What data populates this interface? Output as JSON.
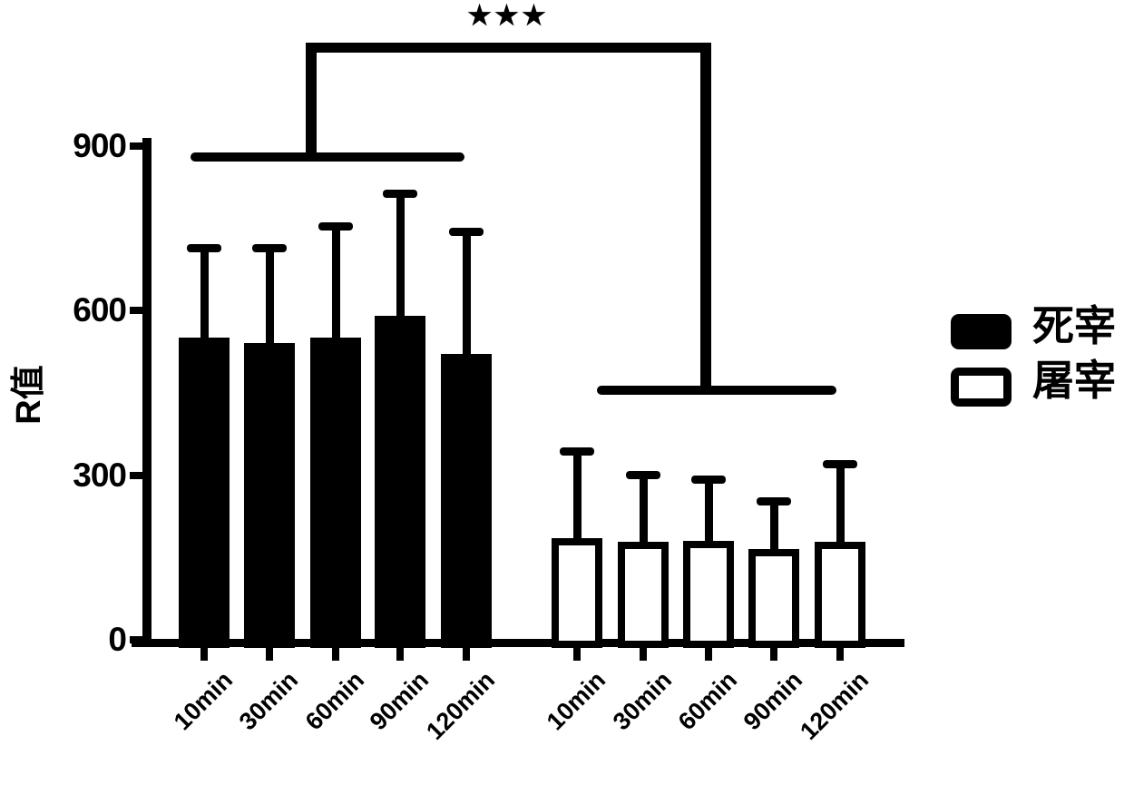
{
  "chart_data": {
    "type": "bar",
    "title": "",
    "ylabel": "R值",
    "xlabel": "",
    "ylim": [
      0,
      900
    ],
    "yticks": [
      0,
      300,
      600,
      900
    ],
    "grid": false,
    "legend_position": "right",
    "categories": [
      "10min",
      "30min",
      "60min",
      "90min",
      "120min"
    ],
    "series": [
      {
        "name": "死宰",
        "style": "filled-black",
        "values": [
          550,
          540,
          550,
          590,
          520
        ],
        "errors": [
          170,
          180,
          210,
          230,
          230
        ]
      },
      {
        "name": "屠宰",
        "style": "open-white",
        "values": [
          185,
          178,
          180,
          165,
          178
        ],
        "errors": [
          165,
          130,
          120,
          95,
          150
        ]
      }
    ],
    "significance": {
      "label": "★★★",
      "between": [
        "死宰",
        "屠宰"
      ]
    },
    "colors": {
      "foreground": "#000000",
      "background": "#ffffff"
    }
  }
}
